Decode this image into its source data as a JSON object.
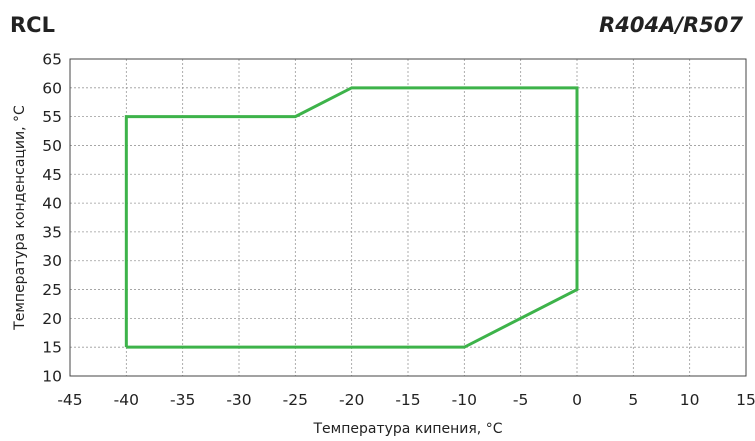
{
  "header": {
    "model": "RCL",
    "refrigerant": "R404A/R507"
  },
  "colors": {
    "envelope": "#3db34a",
    "grid": "#9a9a9a",
    "frame": "#444444"
  },
  "chart_data": {
    "type": "line",
    "title": "RCL",
    "subtitle": "R404A/R507",
    "xlabel": "Температура кипения, °C",
    "ylabel": "Температура конденсации, °C",
    "xlim": [
      -45,
      15
    ],
    "ylim": [
      10,
      65
    ],
    "xticks": [
      -45,
      -40,
      -35,
      -30,
      -25,
      -20,
      -15,
      -10,
      -5,
      0,
      5,
      10,
      15
    ],
    "yticks": [
      10,
      15,
      20,
      25,
      30,
      35,
      40,
      45,
      50,
      55,
      60,
      65
    ],
    "xtick_labels": [
      "-45",
      "-40",
      "-35",
      "-30",
      "-25",
      "-20",
      "-15",
      "-10",
      "-5",
      "0",
      "5",
      "10",
      "15"
    ],
    "ytick_labels": [
      "10",
      "15",
      "20",
      "25",
      "30",
      "35",
      "40",
      "45",
      "50",
      "55",
      "60",
      "65"
    ],
    "grid": true,
    "grid_style": "dotted",
    "series": [
      {
        "closed": true,
        "points": [
          [
            -40,
            15
          ],
          [
            -40,
            55
          ],
          [
            -25,
            55
          ],
          [
            -20,
            60
          ],
          [
            0,
            60
          ],
          [
            0,
            25
          ],
          [
            -10,
            15
          ],
          [
            -40,
            15
          ]
        ]
      }
    ]
  }
}
